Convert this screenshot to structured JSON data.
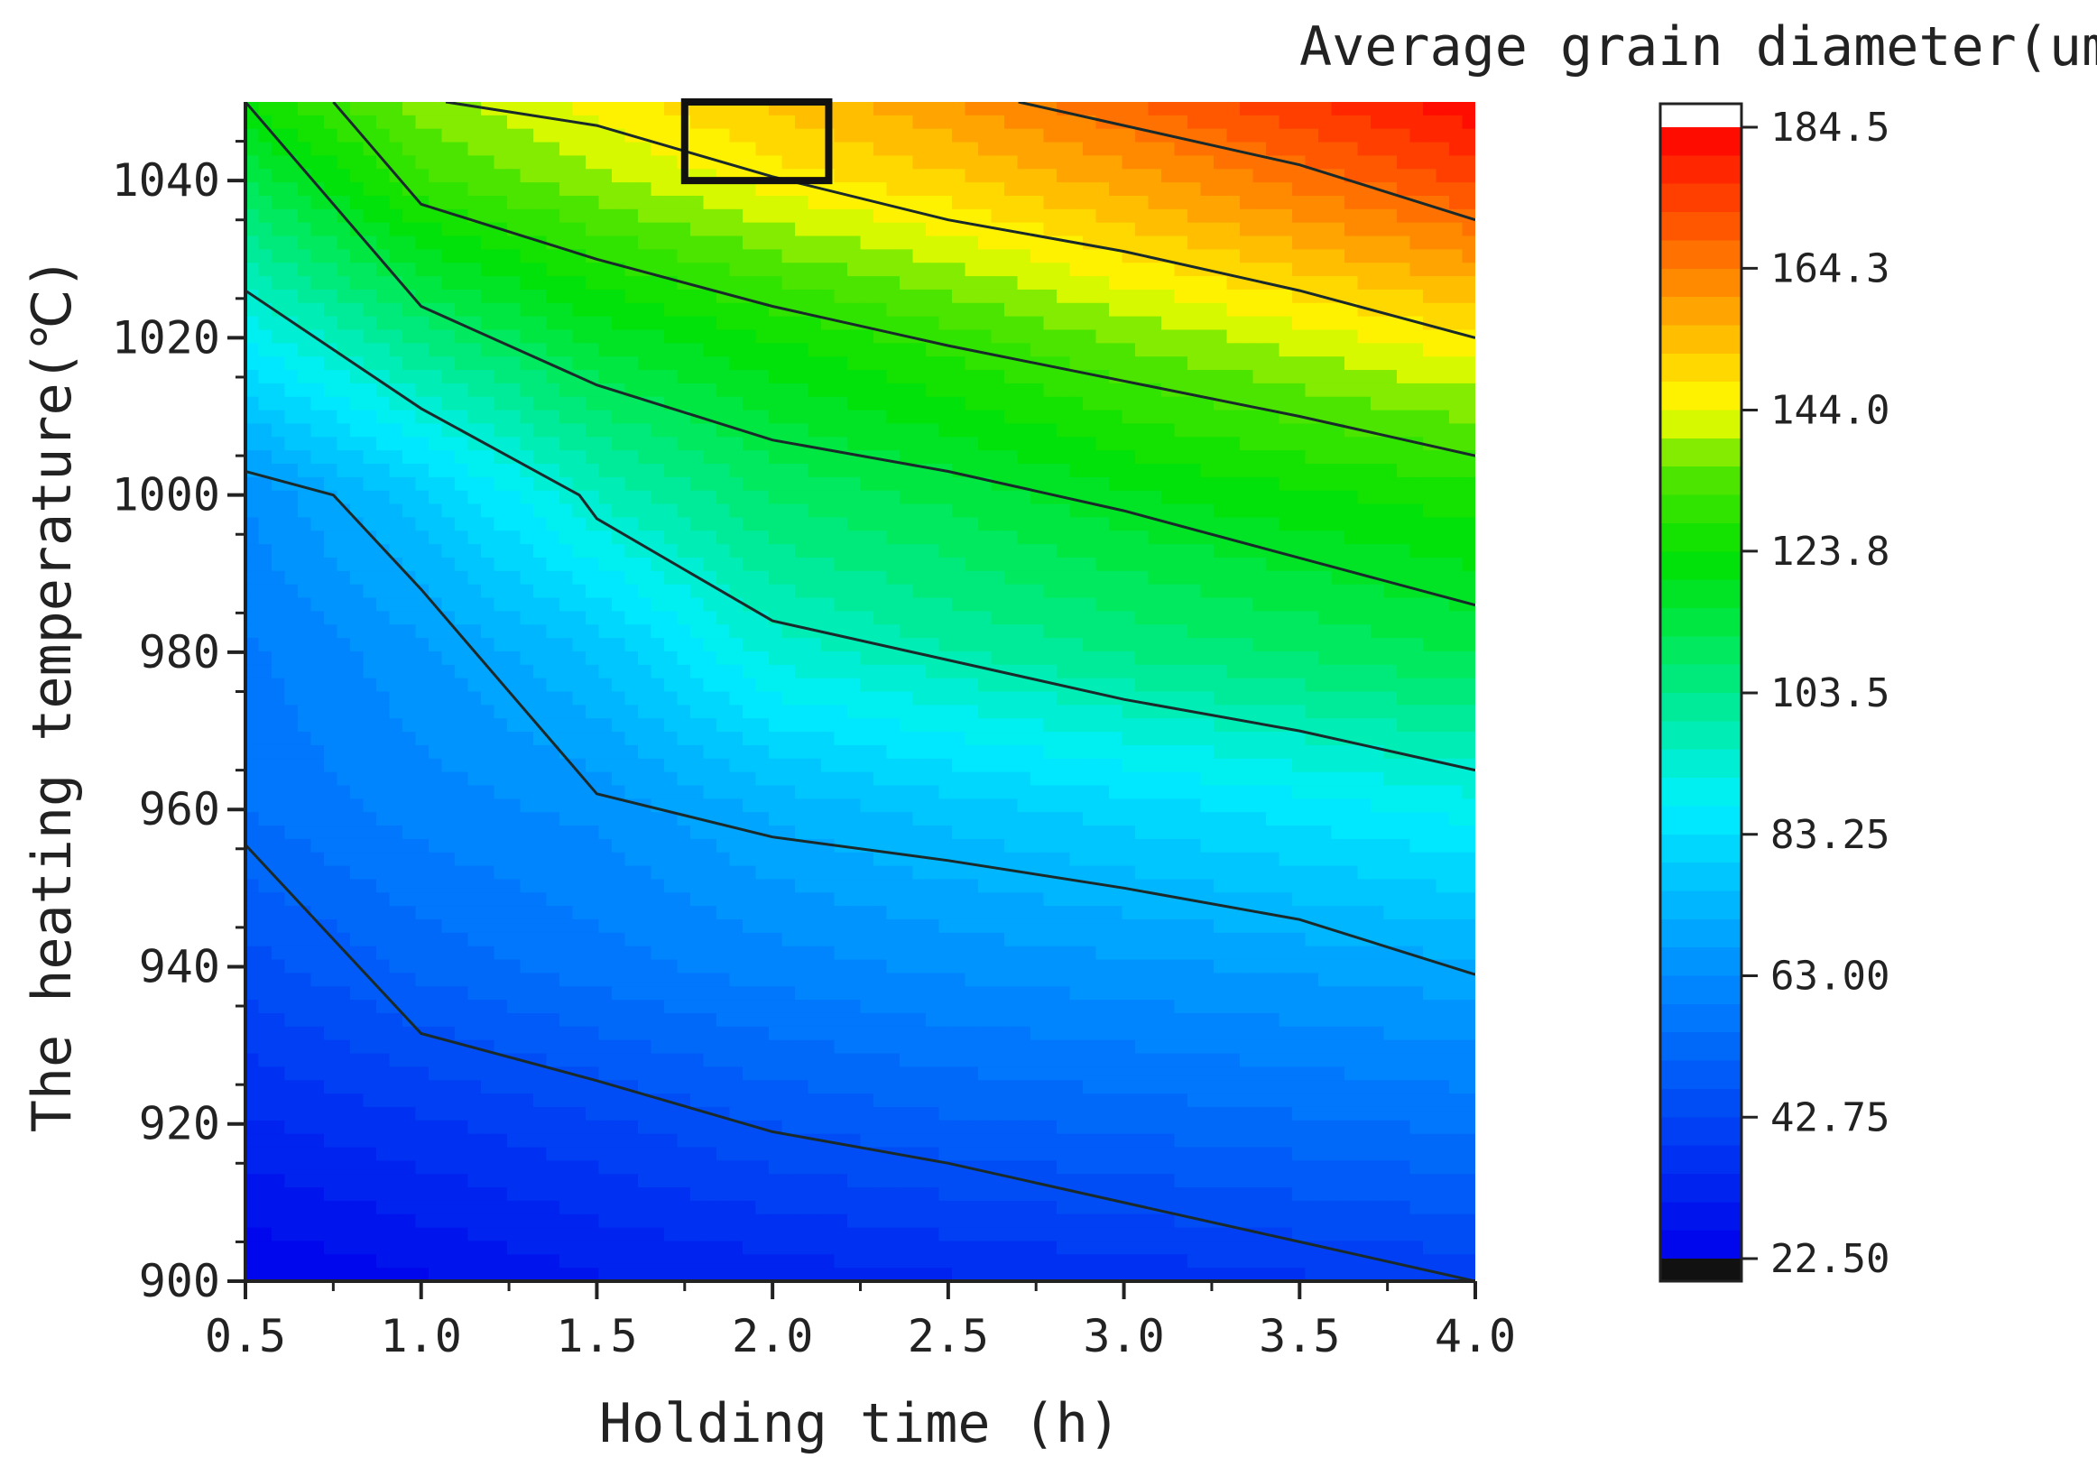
{
  "chart_data": {
    "type": "heatmap",
    "subtype": "filled-contour",
    "title": "",
    "xlabel": "Holding time (h)",
    "ylabel": "The heating temperature(℃)",
    "colorbar_title": "Average grain diameter(um)",
    "xlim": [
      0.5,
      4.0
    ],
    "ylim": [
      900,
      1050
    ],
    "x_ticks": [
      0.5,
      1.0,
      1.5,
      2.0,
      2.5,
      3.0,
      3.5,
      4.0
    ],
    "x_tick_labels": [
      "0.5",
      "1.0",
      "1.5",
      "2.0",
      "2.5",
      "3.0",
      "3.5",
      "4.0"
    ],
    "y_ticks": [
      900,
      920,
      940,
      960,
      980,
      1000,
      1020,
      1040
    ],
    "y_tick_labels": [
      "900",
      "920",
      "940",
      "960",
      "980",
      "1000",
      "1020",
      "1040"
    ],
    "colorbar_range": [
      22.5,
      184.5
    ],
    "colorbar_ticks": [
      22.5,
      42.75,
      63.0,
      83.25,
      103.5,
      123.8,
      144.0,
      164.3,
      184.5
    ],
    "colorbar_tick_labels": [
      "22.50",
      "42.75",
      "63.00",
      "83.25",
      "103.5",
      "123.8",
      "144.0",
      "164.3",
      "184.5"
    ],
    "contour_lines": [
      {
        "name": "contour-1",
        "points": [
          [
            0.5,
            955.5
          ],
          [
            1.0,
            931.5
          ],
          [
            1.5,
            925.5
          ],
          [
            2.0,
            919
          ],
          [
            2.5,
            915
          ],
          [
            3.0,
            910
          ],
          [
            3.5,
            905
          ],
          [
            4.0,
            900
          ]
        ]
      },
      {
        "name": "contour-2",
        "points": [
          [
            0.5,
            1003
          ],
          [
            0.75,
            1000
          ],
          [
            1.0,
            988
          ],
          [
            1.5,
            962
          ],
          [
            2.0,
            956.5
          ],
          [
            2.5,
            953.5
          ],
          [
            3.0,
            950
          ],
          [
            3.5,
            946
          ],
          [
            4.0,
            939
          ]
        ]
      },
      {
        "name": "contour-3",
        "points": [
          [
            0.5,
            1026
          ],
          [
            1.0,
            1011
          ],
          [
            1.45,
            1000
          ],
          [
            1.5,
            997
          ],
          [
            2.0,
            984
          ],
          [
            2.5,
            979
          ],
          [
            3.0,
            974
          ],
          [
            3.5,
            970
          ],
          [
            4.0,
            965
          ]
        ]
      },
      {
        "name": "contour-4",
        "points": [
          [
            0.5,
            1050
          ],
          [
            1.0,
            1024
          ],
          [
            1.5,
            1014
          ],
          [
            2.0,
            1007
          ],
          [
            2.5,
            1003
          ],
          [
            3.0,
            998
          ],
          [
            3.5,
            992
          ],
          [
            4.0,
            986
          ]
        ]
      },
      {
        "name": "contour-5",
        "points": [
          [
            0.75,
            1050
          ],
          [
            1.0,
            1037
          ],
          [
            1.5,
            1030
          ],
          [
            2.0,
            1024
          ],
          [
            2.5,
            1019
          ],
          [
            3.0,
            1014.5
          ],
          [
            3.5,
            1010
          ],
          [
            4.0,
            1005
          ]
        ]
      },
      {
        "name": "contour-6",
        "points": [
          [
            1.07,
            1050
          ],
          [
            1.5,
            1047
          ],
          [
            2.0,
            1040.5
          ],
          [
            2.5,
            1035
          ],
          [
            3.0,
            1031
          ],
          [
            3.5,
            1026
          ],
          [
            4.0,
            1020
          ]
        ]
      },
      {
        "name": "contour-7",
        "points": [
          [
            2.7,
            1050
          ],
          [
            3.0,
            1047
          ],
          [
            3.5,
            1042
          ],
          [
            4.0,
            1035
          ]
        ]
      }
    ],
    "color_field": {
      "x": [
        0.5,
        1.0,
        1.5,
        2.0,
        2.5,
        3.0,
        3.5,
        4.0
      ],
      "y": [
        900,
        920,
        940,
        960,
        980,
        1000,
        1020,
        1040,
        1050
      ],
      "z": [
        [
          22.5,
          26,
          30,
          32,
          34,
          36,
          38,
          40
        ],
        [
          34,
          38,
          42,
          47,
          50,
          52,
          54,
          56
        ],
        [
          45,
          52,
          57,
          61,
          64,
          66,
          68,
          70
        ],
        [
          55,
          61,
          64,
          72,
          77,
          81,
          85,
          89
        ],
        [
          58,
          66,
          76,
          93,
          99,
          104,
          108,
          112
        ],
        [
          63,
          78,
          96,
          108,
          113,
          119,
          123,
          126
        ],
        [
          88,
          105,
          117,
          124,
          130,
          137,
          142,
          147
        ],
        [
          112,
          131,
          139,
          146,
          151,
          158,
          166,
          173
        ],
        [
          124,
          138,
          146,
          153,
          160,
          168,
          176,
          184
        ]
      ]
    },
    "annotations": [
      {
        "type": "highlight-box",
        "x_range": [
          1.75,
          2.16
        ],
        "y_range": [
          1040,
          1050
        ]
      }
    ],
    "grid": false,
    "legend_position": "right"
  }
}
